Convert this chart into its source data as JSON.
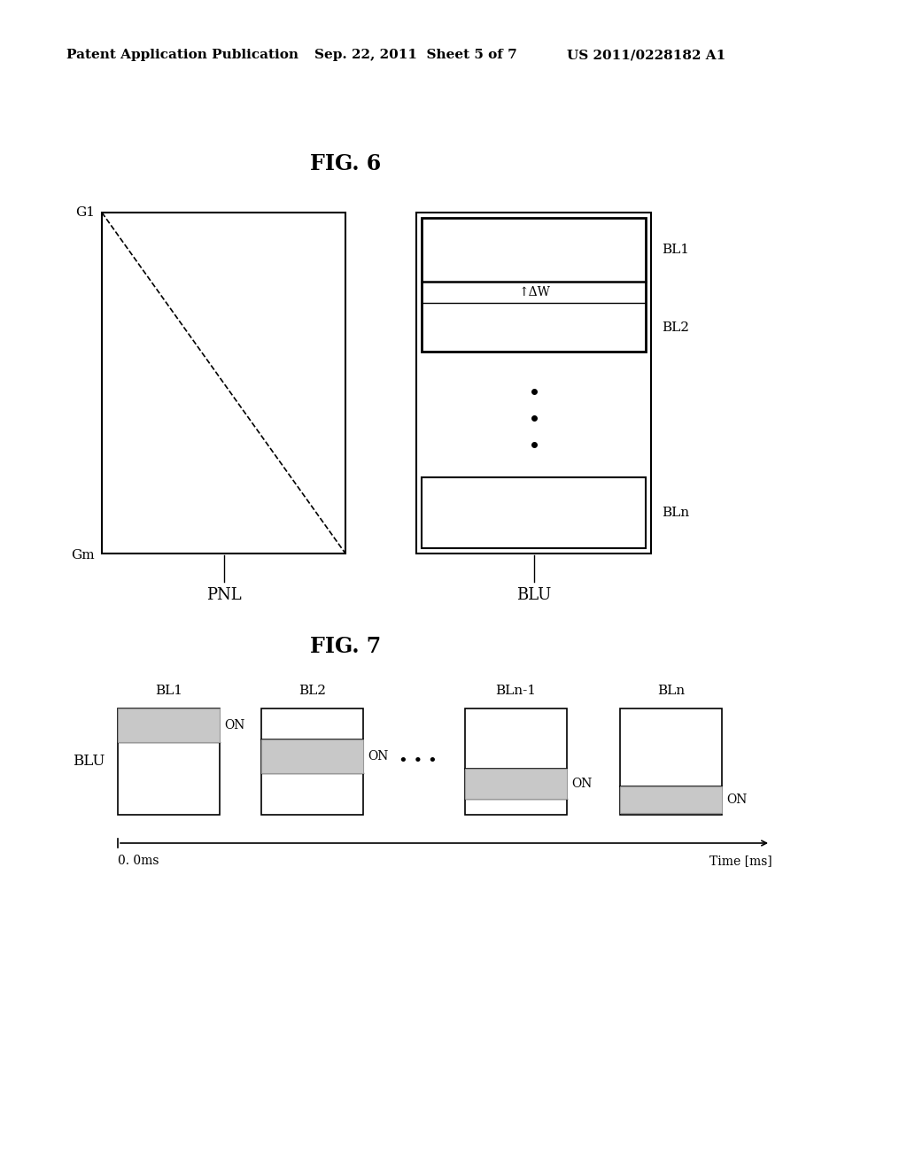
{
  "bg_color": "#ffffff",
  "header_left": "Patent Application Publication",
  "header_mid": "Sep. 22, 2011  Sheet 5 of 7",
  "header_right": "US 2011/0228182 A1",
  "fig6_title": "FIG. 6",
  "fig7_title": "FIG. 7",
  "pnl_label": "PNL",
  "blu_label": "BLU",
  "g1_label": "G1",
  "gm_label": "Gm",
  "bl1_label": "BL1",
  "bl2_label": "BL2",
  "bln_label": "BLn",
  "delta_w_label": "↑ΔW",
  "on_label": "ON",
  "blu_side_label": "BLU",
  "bl1_top": "BL1",
  "bl2_top": "BL2",
  "bln1_top": "BLn-1",
  "bln_top": "BLn",
  "time_label": "Time [ms]",
  "time_start": "0. 0ms"
}
